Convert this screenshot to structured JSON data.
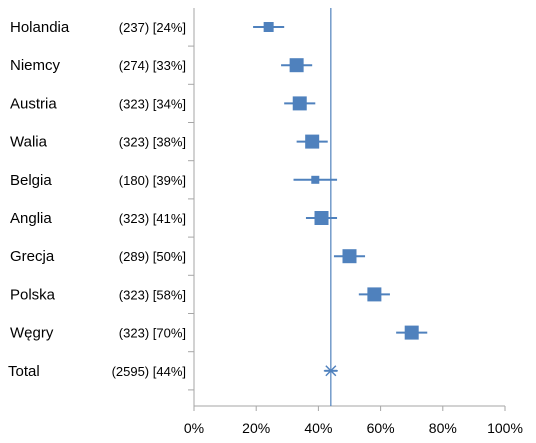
{
  "chart_data": {
    "type": "forest",
    "title": "",
    "xlabel": "",
    "ylabel": "",
    "xlim": [
      0,
      100
    ],
    "x_ticks": [
      "0%",
      "20%",
      "40%",
      "60%",
      "80%",
      "100%"
    ],
    "reference_line": 44,
    "rows": [
      {
        "name": "Holandia",
        "stat": "(237) [24%]",
        "value": 24,
        "ci": [
          19,
          29
        ]
      },
      {
        "name": "Niemcy",
        "stat": "(274) [33%]",
        "value": 33,
        "ci": [
          28,
          38
        ]
      },
      {
        "name": "Austria",
        "stat": "(323) [34%]",
        "value": 34,
        "ci": [
          29,
          39
        ]
      },
      {
        "name": "Walia",
        "stat": "(323) [38%]",
        "value": 38,
        "ci": [
          33,
          43
        ]
      },
      {
        "name": "Belgia",
        "stat": "(180) [39%]",
        "value": 39,
        "ci": [
          32,
          46
        ]
      },
      {
        "name": "Anglia",
        "stat": "(323) [41%]",
        "value": 41,
        "ci": [
          36,
          46
        ]
      },
      {
        "name": "Grecja",
        "stat": "(289) [50%]",
        "value": 50,
        "ci": [
          45,
          55
        ]
      },
      {
        "name": "Polska",
        "stat": "(323) [58%]",
        "value": 58,
        "ci": [
          53,
          63
        ]
      },
      {
        "name": "Węgry",
        "stat": "(323) [70%]",
        "value": 70,
        "ci": [
          65,
          75
        ]
      },
      {
        "name": "Total",
        "stat": "(2595) [44%]",
        "value": 44,
        "ci": [
          42,
          46
        ],
        "marker": "star"
      }
    ],
    "colors": {
      "marker": "#4f81bd",
      "ci_line": "#4f81bd",
      "ref_line": "#4f81bd",
      "axis": "#a6a6a6"
    }
  }
}
